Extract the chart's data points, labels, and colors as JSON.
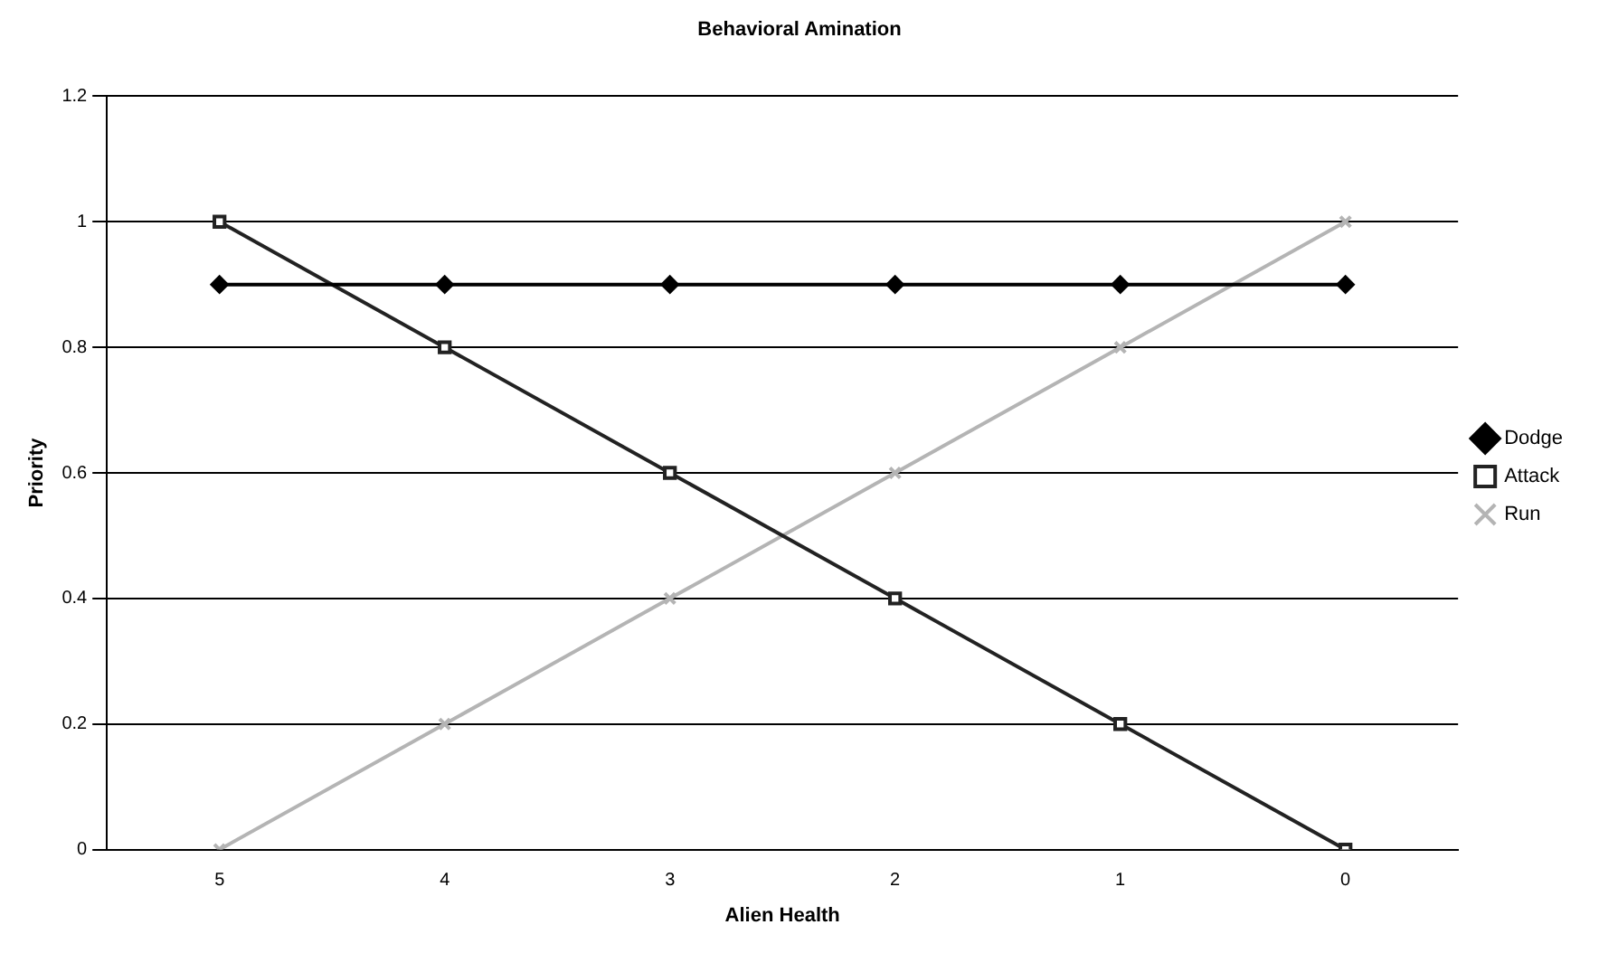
{
  "chart_data": {
    "type": "line",
    "title": "Behavioral Amination",
    "xlabel": "Alien Health",
    "ylabel": "Priority",
    "categories": [
      "5",
      "4",
      "3",
      "2",
      "1",
      "0"
    ],
    "series": [
      {
        "name": "Dodge",
        "color": "#000000",
        "marker": "diamond",
        "values": [
          0.9,
          0.9,
          0.9,
          0.9,
          0.9,
          0.9
        ]
      },
      {
        "name": "Attack",
        "color": "#222222",
        "marker": "square",
        "values": [
          1,
          0.8,
          0.6,
          0.4,
          0.2,
          0
        ]
      },
      {
        "name": "Run",
        "color": "#b4b4b4",
        "marker": "cross",
        "values": [
          0,
          0.2,
          0.4,
          0.6,
          0.8,
          1
        ]
      }
    ],
    "ylim": [
      0,
      1.2
    ],
    "yticks": [
      0,
      0.2,
      0.4,
      0.6,
      0.8,
      1,
      1.2
    ],
    "grid": "y",
    "legend": "right"
  }
}
